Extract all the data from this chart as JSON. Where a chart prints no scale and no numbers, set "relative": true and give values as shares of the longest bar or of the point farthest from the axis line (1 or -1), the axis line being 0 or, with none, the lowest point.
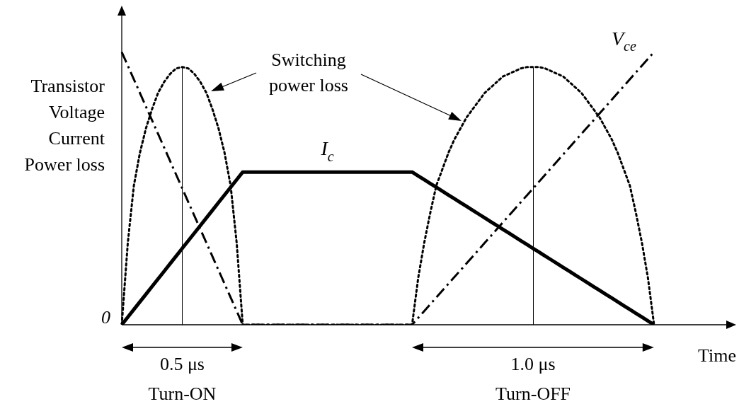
{
  "chart_data": {
    "type": "line",
    "relative": true,
    "xlabel": "Time",
    "ylabel": "Transistor\nVoltage\nCurrent\nPower loss",
    "legend": false,
    "marker": "none",
    "categories": [
      null,
      null,
      null,
      null,
      null,
      null,
      null,
      null,
      null,
      null,
      null,
      null,
      null,
      null,
      null,
      null,
      null,
      null,
      null,
      null,
      null,
      null,
      null,
      null,
      null,
      null,
      null,
      null,
      null,
      null,
      null,
      null,
      null,
      null,
      null,
      null,
      null,
      null,
      null,
      null,
      null,
      null,
      null,
      null,
      null,
      null,
      null,
      null,
      null,
      null,
      null,
      null,
      null,
      null,
      null,
      null,
      null,
      null,
      null,
      null,
      null,
      null,
      null,
      null,
      null,
      null,
      null,
      null,
      null,
      null,
      null,
      null,
      null,
      null,
      null,
      null,
      null,
      null,
      null,
      null,
      null,
      null,
      null,
      null,
      null,
      null,
      null,
      null,
      null
    ],
    "series": [
      {
        "name": "V$_{ce}$",
        "color": "#000000",
        "line_style": "dashed",
        "values": [
          1,
          0.95,
          0.9,
          0.85,
          0.8,
          0.75,
          0.7,
          0.65,
          0.6,
          0.55,
          0.5,
          0.45,
          0.4,
          0.35,
          0.3,
          0.25,
          0.2,
          0.15,
          0.1,
          0.05,
          0,
          0,
          0,
          0,
          0,
          0,
          0,
          0,
          0,
          0,
          0,
          0,
          0,
          0,
          0,
          0,
          0,
          0,
          0,
          0,
          0,
          0,
          0,
          0,
          0,
          0,
          0,
          0,
          0,
          0.025,
          0.05,
          0.075,
          0.1,
          0.125,
          0.15,
          0.175,
          0.2,
          0.225,
          0.25,
          0.275,
          0.3,
          0.325,
          0.35,
          0.375,
          0.4,
          0.425,
          0.45,
          0.475,
          0.5,
          0.525,
          0.55,
          0.575,
          0.6,
          0.625,
          0.65,
          0.675,
          0.7,
          0.725,
          0.75,
          0.775,
          0.8,
          0.825,
          0.85,
          0.875,
          0.9,
          0.925,
          0.95,
          0.975,
          1
        ]
      },
      {
        "name": "I$_{c}$",
        "color": "#000000",
        "line_style": "solid",
        "values": [
          0,
          0.028,
          0.056,
          0.084,
          0.112,
          0.14,
          0.168,
          0.196,
          0.224,
          0.252,
          0.28,
          0.308,
          0.336,
          0.364,
          0.392,
          0.42,
          0.448,
          0.476,
          0.504,
          0.532,
          0.56,
          0.56,
          0.56,
          0.56,
          0.56,
          0.56,
          0.56,
          0.56,
          0.56,
          0.56,
          0.56,
          0.56,
          0.56,
          0.56,
          0.56,
          0.56,
          0.56,
          0.56,
          0.56,
          0.56,
          0.56,
          0.56,
          0.56,
          0.56,
          0.56,
          0.56,
          0.56,
          0.56,
          0.56,
          0.546,
          0.532,
          0.518,
          0.504,
          0.49,
          0.476,
          0.462,
          0.448,
          0.434,
          0.42,
          0.406,
          0.392,
          0.378,
          0.364,
          0.35,
          0.336,
          0.322,
          0.308,
          0.294,
          0.28,
          0.266,
          0.252,
          0.238,
          0.224,
          0.21,
          0.196,
          0.182,
          0.168,
          0.154,
          0.14,
          0.126,
          0.112,
          0.098,
          0.084,
          0.07,
          0.056,
          0.042,
          0.028,
          0.014,
          0
        ]
      },
      {
        "color": "#000000",
        "line_style": "dotted",
        "values": [
          0,
          0.3,
          0.51,
          0.63,
          0.72,
          0.79,
          0.85,
          0.89,
          0.92,
          0.94,
          0.945,
          0.94,
          0.92,
          0.89,
          0.85,
          0.79,
          0.72,
          0.63,
          0.51,
          0.3,
          0,
          0,
          0,
          0,
          0,
          0,
          0,
          0,
          0,
          0,
          0,
          0,
          0,
          0,
          0,
          0,
          0,
          0,
          0,
          0,
          0,
          0,
          0,
          0,
          0,
          0,
          0,
          0,
          0,
          0.17,
          0.3,
          0.41,
          0.51,
          0.57,
          0.63,
          0.68,
          0.72,
          0.76,
          0.79,
          0.82,
          0.85,
          0.87,
          0.89,
          0.91,
          0.92,
          0.93,
          0.94,
          0.945,
          0.945,
          0.945,
          0.94,
          0.93,
          0.92,
          0.91,
          0.89,
          0.87,
          0.85,
          0.82,
          0.79,
          0.76,
          0.72,
          0.68,
          0.63,
          0.57,
          0.51,
          0.41,
          0.3,
          0.17,
          0
        ]
      }
    ],
    "annotations": [
      "0.5 μs",
      "Turn-ON",
      "1.0 μs",
      "Turn-OFF",
      "0",
      "Switching power loss"
    ]
  }
}
